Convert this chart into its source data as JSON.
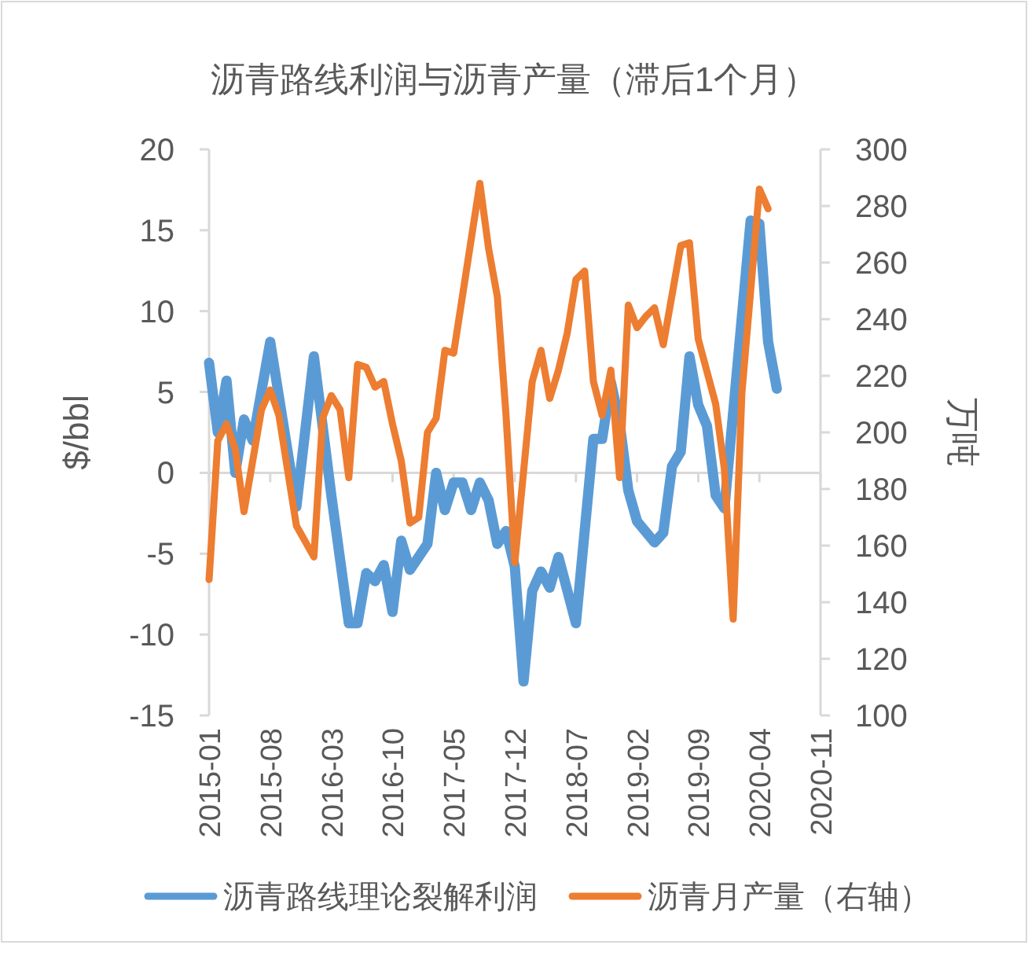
{
  "chart_data": {
    "type": "line",
    "title": "沥青路线利润与沥青产量（滞后1个月）",
    "ylabel": "$/bbl",
    "y2label": "万吨",
    "legend": "bottom",
    "xlim": [
      "2015-01",
      "2020-11"
    ],
    "xticks": [
      "2015-01",
      "2015-08",
      "2016-03",
      "2016-10",
      "2017-05",
      "2017-12",
      "2018-07",
      "2019-02",
      "2019-09",
      "2020-04",
      "2020-11"
    ],
    "ylim": [
      -15,
      20
    ],
    "yticks": [
      -15,
      -10,
      -5,
      0,
      5,
      10,
      15,
      20
    ],
    "y2lim": [
      100,
      300
    ],
    "y2ticks": [
      100,
      120,
      140,
      160,
      180,
      200,
      220,
      240,
      260,
      280,
      300
    ],
    "series": [
      {
        "name": "沥青路线理论裂解利润",
        "color": "#5b9bd5",
        "x": [
          "2015-01",
          "2015-02",
          "2015-03",
          "2015-04",
          "2015-05",
          "2015-06",
          "2015-08",
          "2015-11",
          "2016-01",
          "2016-03",
          "2016-05",
          "2016-06",
          "2016-07",
          "2016-08",
          "2016-09",
          "2016-10",
          "2016-11",
          "2016-12",
          "2017-02",
          "2017-03",
          "2017-04",
          "2017-05",
          "2017-06",
          "2017-07",
          "2017-08",
          "2017-09",
          "2017-10",
          "2017-11",
          "2017-12",
          "2018-01",
          "2018-02",
          "2018-03",
          "2018-04",
          "2018-05",
          "2018-07",
          "2018-09",
          "2018-10",
          "2018-11",
          "2018-12",
          "2019-01",
          "2019-02",
          "2019-04",
          "2019-05",
          "2019-06",
          "2019-07",
          "2019-08",
          "2019-09",
          "2019-10",
          "2019-11",
          "2019-12",
          "2020-03",
          "2020-04",
          "2020-05",
          "2020-06"
        ],
        "values": [
          6.8,
          2.5,
          5.7,
          0,
          3.3,
          2,
          8.1,
          -2.1,
          7.2,
          -1.4,
          -9.3,
          -9.3,
          -6.2,
          -6.7,
          -5.7,
          -8.6,
          -4.2,
          -6,
          -4.4,
          0,
          -2.3,
          -0.6,
          -0.6,
          -2.3,
          -0.6,
          -1.7,
          -4.4,
          -3.6,
          -5.8,
          -12.9,
          -7.3,
          -6.1,
          -7.1,
          -5.2,
          -9.3,
          2.1,
          2.1,
          5.6,
          3.1,
          -1.1,
          -3,
          -4.3,
          -3.7,
          0.4,
          1.3,
          7.2,
          4.2,
          2.9,
          -1.4,
          -2.2,
          15.6,
          15.4,
          8.1,
          5.2
        ]
      },
      {
        "name": "沥青月产量（右轴）",
        "color": "#ed7d31",
        "axis": "y2",
        "x": [
          "2015-01",
          "2015-02",
          "2015-03",
          "2015-04",
          "2015-05",
          "2015-07",
          "2015-08",
          "2015-09",
          "2015-11",
          "2016-01",
          "2016-02",
          "2016-03",
          "2016-04",
          "2016-05",
          "2016-06",
          "2016-07",
          "2016-08",
          "2016-09",
          "2016-10",
          "2016-11",
          "2016-12",
          "2017-01",
          "2017-02",
          "2017-03",
          "2017-04",
          "2017-05",
          "2017-08",
          "2017-09",
          "2017-10",
          "2017-11",
          "2017-12",
          "2018-02",
          "2018-03",
          "2018-04",
          "2018-05",
          "2018-06",
          "2018-07",
          "2018-08",
          "2018-09",
          "2018-10",
          "2018-11",
          "2018-12",
          "2019-01",
          "2019-02",
          "2019-03",
          "2019-04",
          "2019-05",
          "2019-07",
          "2019-08",
          "2019-09",
          "2019-11",
          "2019-12",
          "2020-01",
          "2020-02",
          "2020-04",
          "2020-05"
        ],
        "values": [
          148,
          197,
          203,
          194,
          172,
          208,
          215,
          206,
          167,
          156,
          205,
          213,
          208,
          184,
          224,
          223,
          216,
          218,
          203,
          190,
          168,
          170,
          200,
          205,
          229,
          228,
          288,
          265,
          248,
          206,
          154,
          218,
          229,
          212,
          222,
          235,
          254,
          257,
          218,
          206,
          222,
          184,
          245,
          237,
          241,
          244,
          231,
          266,
          267,
          233,
          210,
          187,
          134,
          214,
          286,
          279
        ]
      }
    ]
  }
}
